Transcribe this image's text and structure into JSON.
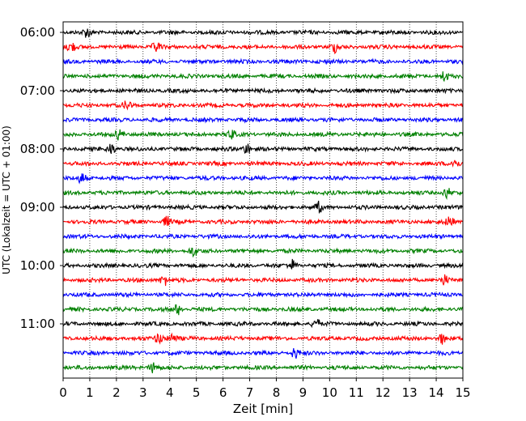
{
  "chart_data": {
    "type": "line",
    "title": "",
    "xlabel": "Zeit  [min]",
    "ylabel": "UTC (Lokalzeit = UTC + 01:00)",
    "xlim": [
      0,
      15
    ],
    "x_ticks": [
      "0",
      "1",
      "2",
      "3",
      "4",
      "5",
      "6",
      "7",
      "8",
      "9",
      "10",
      "11",
      "12",
      "13",
      "14",
      "15"
    ],
    "y_tick_labels": [
      "06:00",
      "07:00",
      "08:00",
      "09:00",
      "10:00",
      "11:00"
    ],
    "y_tick_rows": [
      0,
      4,
      8,
      12,
      16,
      20
    ],
    "grid": "vertical dotted lines at every minute",
    "trace_colors": [
      "#000000",
      "#ff0000",
      "#0000ff",
      "#008000"
    ],
    "trace_start_times": [
      "06:00",
      "06:15",
      "06:30",
      "06:45",
      "07:00",
      "07:15",
      "07:30",
      "07:45",
      "08:00",
      "08:15",
      "08:30",
      "08:45",
      "09:00",
      "09:15",
      "09:30",
      "09:45",
      "10:00",
      "10:15",
      "10:30",
      "10:45",
      "11:00",
      "11:15",
      "11:30",
      "11:45"
    ],
    "trace_minutes_per_line": 15,
    "notable_spikes": [
      {
        "trace": 0,
        "t": 0.9
      },
      {
        "trace": 1,
        "t": 0.3
      },
      {
        "trace": 1,
        "t": 3.5
      },
      {
        "trace": 1,
        "t": 10.2
      },
      {
        "trace": 3,
        "t": 14.3
      },
      {
        "trace": 5,
        "t": 2.4
      },
      {
        "trace": 7,
        "t": 2.1
      },
      {
        "trace": 7,
        "t": 6.3
      },
      {
        "trace": 8,
        "t": 1.8
      },
      {
        "trace": 8,
        "t": 6.9
      },
      {
        "trace": 9,
        "t": 14.7
      },
      {
        "trace": 10,
        "t": 0.7
      },
      {
        "trace": 11,
        "t": 14.4
      },
      {
        "trace": 12,
        "t": 9.6
      },
      {
        "trace": 13,
        "t": 3.9
      },
      {
        "trace": 13,
        "t": 14.5
      },
      {
        "trace": 15,
        "t": 4.9
      },
      {
        "trace": 16,
        "t": 8.6
      },
      {
        "trace": 17,
        "t": 3.8
      },
      {
        "trace": 17,
        "t": 14.3
      },
      {
        "trace": 19,
        "t": 4.3
      },
      {
        "trace": 20,
        "t": 9.5
      },
      {
        "trace": 21,
        "t": 3.6
      },
      {
        "trace": 21,
        "t": 4.1
      },
      {
        "trace": 21,
        "t": 14.2
      },
      {
        "trace": 22,
        "t": 8.7
      },
      {
        "trace": 23,
        "t": 3.4
      }
    ]
  }
}
